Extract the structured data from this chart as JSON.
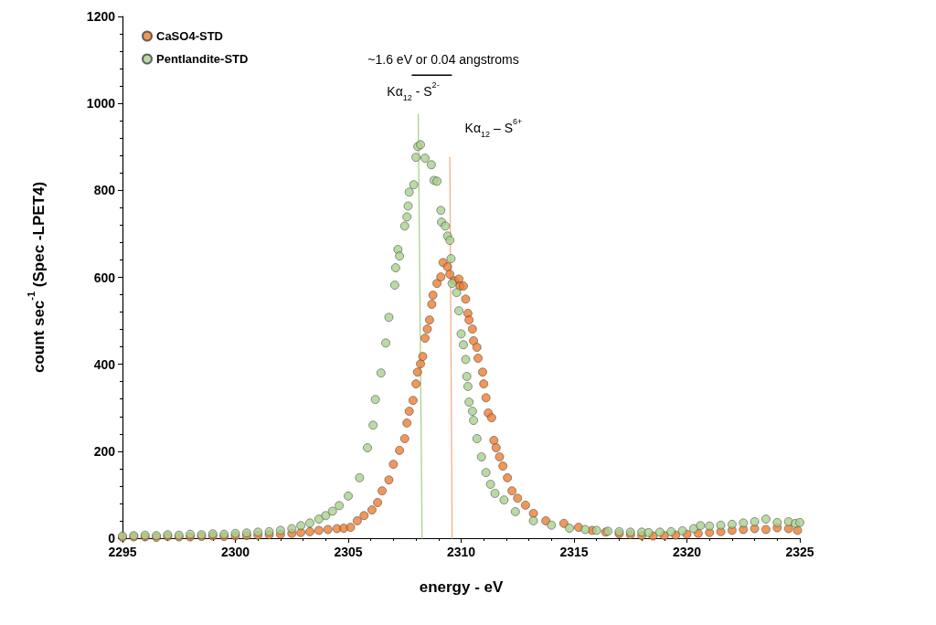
{
  "chart_data": {
    "type": "scatter",
    "xlabel": "energy - eV",
    "ylabel": "count sec$^{-1}$ (Spec -LPET4)",
    "xlim": [
      2295,
      2325
    ],
    "xticks": [
      2295,
      2300,
      2305,
      2310,
      2315,
      2320,
      2325
    ],
    "ylim": [
      0,
      1200
    ],
    "yticks": [
      0,
      200,
      400,
      600,
      800,
      1000,
      1200
    ],
    "grid": false,
    "legend": "top left",
    "annotations": [
      "~1.6 eV or 0.04 angstroms",
      "Kα$_{12}$ - S$^{2-}$",
      "Kα$_{12}$ – S$^{6+}$"
    ],
    "series": [
      {
        "name": "CaSO4-STD",
        "color": "#ed7d31",
        "marker": "circle",
        "x": [
          2295,
          2295.5,
          2296,
          2296.5,
          2297,
          2297.5,
          2298,
          2298.5,
          2299,
          2299.5,
          2300,
          2300.5,
          2301,
          2301.5,
          2302,
          2302.5,
          2302.9,
          2303.3,
          2303.7,
          2304.1,
          2304.5,
          2304.8,
          2305.1,
          2305.4,
          2305.7,
          2306.05,
          2306.3,
          2306.5,
          2306.8,
          2307,
          2307.27,
          2307.5,
          2307.6,
          2307.7,
          2307.87,
          2308,
          2308.07,
          2308.2,
          2308.3,
          2308.4,
          2308.5,
          2308.6,
          2308.7,
          2308.75,
          2308.93,
          2309.1,
          2309.2,
          2309.4,
          2309.5,
          2309.7,
          2309.9,
          2309.95,
          2310.1,
          2310.2,
          2310.3,
          2310.35,
          2310.5,
          2310.55,
          2310.7,
          2310.75,
          2310.95,
          2311,
          2311.1,
          2311.2,
          2311.35,
          2311.45,
          2311.55,
          2311.7,
          2311.85,
          2312.05,
          2312.25,
          2312.5,
          2312.85,
          2313.2,
          2313.75,
          2314.55,
          2315.2,
          2315.8,
          2316.4,
          2317,
          2317.5,
          2318,
          2318.5,
          2319,
          2319.5,
          2320,
          2320.5,
          2321,
          2321.5,
          2322,
          2322.5,
          2323,
          2323.5,
          2324,
          2324.5,
          2324.9
        ],
        "values": [
          2,
          3,
          3,
          2,
          4,
          3,
          3,
          4,
          5,
          4,
          5,
          6,
          7,
          8,
          9,
          11,
          13,
          15,
          18,
          20,
          22,
          23,
          25,
          40,
          52,
          65,
          82,
          109,
          134,
          170,
          202,
          229,
          265,
          292,
          317,
          355,
          382,
          401,
          418,
          460,
          481,
          502,
          538,
          559,
          586,
          601,
          634,
          624,
          607,
          592,
          596,
          580,
          580,
          550,
          517,
          502,
          481,
          454,
          439,
          414,
          382,
          355,
          323,
          288,
          277,
          225,
          208,
          187,
          166,
          139,
          109,
          92,
          76,
          57,
          40,
          34,
          25,
          18,
          14,
          10,
          8,
          6,
          5,
          6,
          7,
          9,
          11,
          13,
          15,
          18,
          20,
          22,
          20,
          24,
          22,
          18
        ]
      },
      {
        "name": "Pentlandite-STD",
        "color": "#a9d18e",
        "marker": "circle",
        "x": [
          2295,
          2295.5,
          2296,
          2296.5,
          2297,
          2297.5,
          2298,
          2298.5,
          2299,
          2299.5,
          2300,
          2300.5,
          2301,
          2301.5,
          2302,
          2302.5,
          2302.9,
          2303.3,
          2303.7,
          2304,
          2304.3,
          2304.6,
          2305,
          2305.5,
          2305.85,
          2306.1,
          2306.2,
          2306.45,
          2306.66,
          2306.8,
          2307.06,
          2307.1,
          2307.2,
          2307.27,
          2307.5,
          2307.6,
          2307.65,
          2307.7,
          2307.9,
          2308,
          2308.08,
          2308.2,
          2308.4,
          2308.68,
          2308.8,
          2308.93,
          2309.1,
          2309.13,
          2309.3,
          2309.4,
          2309.5,
          2309.55,
          2309.6,
          2309.8,
          2309.9,
          2310,
          2310.1,
          2310.2,
          2310.25,
          2310.3,
          2310.35,
          2310.5,
          2310.55,
          2310.7,
          2310.9,
          2311.1,
          2311.3,
          2311.5,
          2311.9,
          2312.4,
          2313.2,
          2314,
          2314.8,
          2315.5,
          2316,
          2316.5,
          2317,
          2317.5,
          2318,
          2318.3,
          2318.8,
          2319.3,
          2319.8,
          2320.3,
          2320.6,
          2321,
          2321.5,
          2322,
          2322.5,
          2323,
          2323.5,
          2324,
          2324.5,
          2324.8,
          2325
        ],
        "values": [
          5,
          6,
          7,
          6,
          8,
          7,
          9,
          8,
          10,
          9,
          11,
          12,
          14,
          15,
          18,
          22,
          29,
          35,
          44,
          52,
          62,
          75,
          97,
          139,
          208,
          260,
          319,
          380,
          449,
          508,
          582,
          622,
          664,
          649,
          718,
          739,
          764,
          796,
          813,
          876,
          901,
          905,
          874,
          859,
          823,
          821,
          754,
          727,
          718,
          695,
          685,
          643,
          586,
          565,
          523,
          470,
          445,
          411,
          372,
          349,
          313,
          292,
          271,
          229,
          187,
          151,
          124,
          103,
          88,
          61,
          40,
          30,
          23,
          20,
          18,
          16,
          15,
          14,
          14,
          13,
          14,
          15,
          17,
          22,
          29,
          28,
          30,
          32,
          35,
          38,
          44,
          36,
          38,
          34,
          36
        ]
      },
      {
        "type": "line",
        "color": "#a9d18e",
        "line_style": "solid",
        "marker": "none",
        "x": [
          2308.1,
          2308.27
        ],
        "values": [
          975,
          0
        ]
      },
      {
        "type": "line",
        "color": "#f4b183",
        "line_style": "solid",
        "marker": "none",
        "x": [
          2309.5,
          2309.6
        ],
        "values": [
          876,
          0
        ]
      },
      {
        "type": "line",
        "color": "#000000",
        "line_style": "solid",
        "marker": "none",
        "x": [
          2307.83,
          2309.57
        ],
        "values": [
          1065,
          1065
        ]
      }
    ]
  }
}
